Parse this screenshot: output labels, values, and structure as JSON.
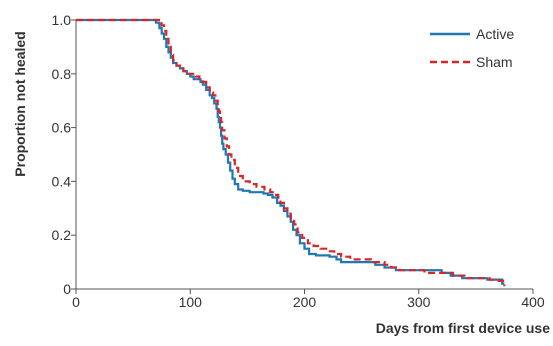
{
  "chart_data": {
    "type": "line",
    "xlabel": "Days from first device use",
    "ylabel": "Proportion not healed",
    "xlim": [
      0,
      400
    ],
    "ylim": [
      0,
      1.0
    ],
    "x_ticks": [
      {
        "value": 0,
        "label": "0"
      },
      {
        "value": 100,
        "label": "100"
      },
      {
        "value": 200,
        "label": "200"
      },
      {
        "value": 300,
        "label": "300"
      },
      {
        "value": 400,
        "label": "400"
      }
    ],
    "y_ticks": [
      {
        "value": 0,
        "label": "0"
      },
      {
        "value": 0.2,
        "label": "0.2"
      },
      {
        "value": 0.4,
        "label": "0.4"
      },
      {
        "value": 0.6,
        "label": "0.6"
      },
      {
        "value": 0.8,
        "label": "0.8"
      },
      {
        "value": 1.0,
        "label": "1.0"
      }
    ],
    "grid": false,
    "legend_position": "top-right",
    "series": [
      {
        "name": "Active",
        "color": "#1f77b4",
        "dash": "solid",
        "points": [
          [
            0,
            1.0
          ],
          [
            68,
            1.0
          ],
          [
            70,
            0.99
          ],
          [
            73,
            0.97
          ],
          [
            75,
            0.95
          ],
          [
            77,
            0.93
          ],
          [
            79,
            0.9
          ],
          [
            81,
            0.88
          ],
          [
            83,
            0.86
          ],
          [
            85,
            0.84
          ],
          [
            88,
            0.83
          ],
          [
            91,
            0.82
          ],
          [
            94,
            0.81
          ],
          [
            97,
            0.8
          ],
          [
            100,
            0.79
          ],
          [
            103,
            0.78
          ],
          [
            106,
            0.78
          ],
          [
            109,
            0.77
          ],
          [
            111,
            0.76
          ],
          [
            114,
            0.74
          ],
          [
            117,
            0.72
          ],
          [
            119,
            0.71
          ],
          [
            121,
            0.69
          ],
          [
            123,
            0.67
          ],
          [
            124,
            0.64
          ],
          [
            125,
            0.62
          ],
          [
            126,
            0.6
          ],
          [
            127,
            0.57
          ],
          [
            128,
            0.54
          ],
          [
            129,
            0.52
          ],
          [
            131,
            0.5
          ],
          [
            133,
            0.47
          ],
          [
            135,
            0.44
          ],
          [
            137,
            0.41
          ],
          [
            139,
            0.39
          ],
          [
            142,
            0.37
          ],
          [
            146,
            0.365
          ],
          [
            152,
            0.36
          ],
          [
            158,
            0.36
          ],
          [
            164,
            0.355
          ],
          [
            168,
            0.35
          ],
          [
            172,
            0.34
          ],
          [
            176,
            0.32
          ],
          [
            179,
            0.31
          ],
          [
            182,
            0.29
          ],
          [
            185,
            0.27
          ],
          [
            188,
            0.25
          ],
          [
            190,
            0.22
          ],
          [
            193,
            0.2
          ],
          [
            196,
            0.17
          ],
          [
            200,
            0.15
          ],
          [
            204,
            0.13
          ],
          [
            210,
            0.125
          ],
          [
            215,
            0.125
          ],
          [
            222,
            0.12
          ],
          [
            228,
            0.11
          ],
          [
            232,
            0.1
          ],
          [
            245,
            0.1
          ],
          [
            255,
            0.1
          ],
          [
            262,
            0.09
          ],
          [
            270,
            0.08
          ],
          [
            280,
            0.07
          ],
          [
            300,
            0.07
          ],
          [
            315,
            0.07
          ],
          [
            320,
            0.06
          ],
          [
            328,
            0.05
          ],
          [
            338,
            0.04
          ],
          [
            350,
            0.04
          ],
          [
            360,
            0.035
          ],
          [
            370,
            0.035
          ],
          [
            373,
            0.02
          ],
          [
            375,
            0.02
          ]
        ]
      },
      {
        "name": "Sham",
        "color": "#d62728",
        "dash": "dashed",
        "points": [
          [
            0,
            1.0
          ],
          [
            72,
            1.0
          ],
          [
            75,
            0.98
          ],
          [
            77,
            0.96
          ],
          [
            79,
            0.93
          ],
          [
            81,
            0.9
          ],
          [
            83,
            0.87
          ],
          [
            85,
            0.85
          ],
          [
            88,
            0.83
          ],
          [
            91,
            0.82
          ],
          [
            94,
            0.81
          ],
          [
            97,
            0.8
          ],
          [
            101,
            0.8
          ],
          [
            105,
            0.79
          ],
          [
            108,
            0.78
          ],
          [
            111,
            0.77
          ],
          [
            114,
            0.75
          ],
          [
            117,
            0.73
          ],
          [
            120,
            0.72
          ],
          [
            122,
            0.7
          ],
          [
            124,
            0.68
          ],
          [
            125,
            0.66
          ],
          [
            126,
            0.64
          ],
          [
            127,
            0.62
          ],
          [
            128,
            0.59
          ],
          [
            130,
            0.56
          ],
          [
            132,
            0.53
          ],
          [
            134,
            0.5
          ],
          [
            136,
            0.48
          ],
          [
            139,
            0.45
          ],
          [
            142,
            0.42
          ],
          [
            146,
            0.4
          ],
          [
            152,
            0.39
          ],
          [
            158,
            0.38
          ],
          [
            165,
            0.37
          ],
          [
            170,
            0.36
          ],
          [
            174,
            0.35
          ],
          [
            177,
            0.34
          ],
          [
            179,
            0.32
          ],
          [
            182,
            0.3
          ],
          [
            185,
            0.28
          ],
          [
            188,
            0.26
          ],
          [
            191,
            0.24
          ],
          [
            194,
            0.21
          ],
          [
            198,
            0.19
          ],
          [
            203,
            0.17
          ],
          [
            208,
            0.16
          ],
          [
            214,
            0.15
          ],
          [
            220,
            0.14
          ],
          [
            226,
            0.13
          ],
          [
            232,
            0.12
          ],
          [
            240,
            0.11
          ],
          [
            250,
            0.11
          ],
          [
            258,
            0.1
          ],
          [
            264,
            0.1
          ],
          [
            270,
            0.09
          ],
          [
            276,
            0.08
          ],
          [
            283,
            0.07
          ],
          [
            295,
            0.07
          ],
          [
            305,
            0.06
          ],
          [
            320,
            0.06
          ],
          [
            330,
            0.05
          ],
          [
            340,
            0.04
          ],
          [
            352,
            0.04
          ],
          [
            362,
            0.035
          ],
          [
            370,
            0.03
          ],
          [
            375,
            0.01
          ]
        ]
      }
    ]
  }
}
